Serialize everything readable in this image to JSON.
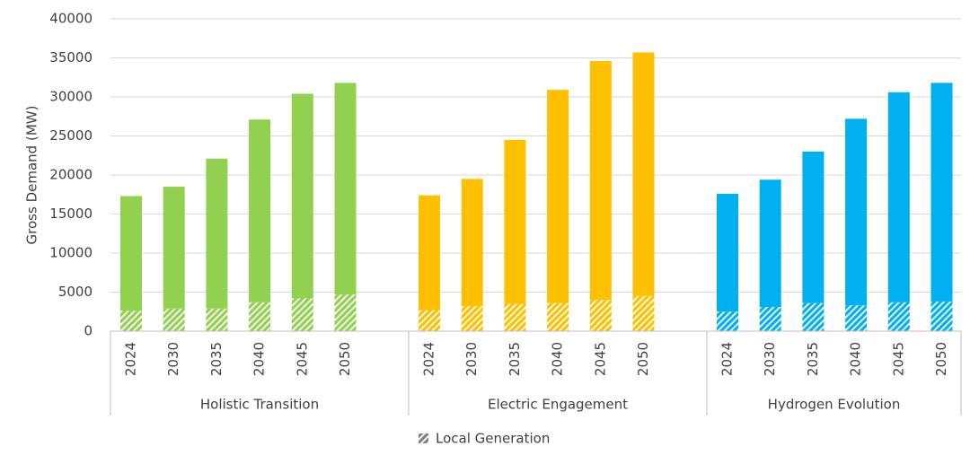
{
  "chart_data": {
    "type": "bar",
    "y_label": "Gross Demand (MW)",
    "ylim": [
      0,
      40000
    ],
    "yticks": [
      0,
      5000,
      10000,
      15000,
      20000,
      25000,
      30000,
      35000,
      40000
    ],
    "grid": true,
    "legend": "Local Generation",
    "groups": [
      {
        "name": "Holistic Transition",
        "color": "#92d050",
        "categories": [
          "2024",
          "2030",
          "2035",
          "2040",
          "2045",
          "2050"
        ],
        "local_generation": [
          2600,
          2900,
          2900,
          3700,
          4200,
          4700
        ],
        "other_demand": [
          14700,
          15600,
          19200,
          23400,
          26200,
          27100
        ]
      },
      {
        "name": "Electric Engagement",
        "color": "#ffc000",
        "categories": [
          "2024",
          "2030",
          "2035",
          "2040",
          "2045",
          "2050"
        ],
        "local_generation": [
          2700,
          3200,
          3500,
          3600,
          4000,
          4500
        ],
        "other_demand": [
          14700,
          16300,
          21000,
          27300,
          30600,
          31200
        ]
      },
      {
        "name": "Hydrogen Evolution",
        "color": "#00b0f0",
        "categories": [
          "2024",
          "2030",
          "2035",
          "2040",
          "2045",
          "2050"
        ],
        "local_generation": [
          2500,
          3100,
          3600,
          3300,
          3700,
          3800
        ],
        "other_demand": [
          15100,
          16300,
          19400,
          23900,
          26900,
          28000
        ]
      }
    ]
  }
}
